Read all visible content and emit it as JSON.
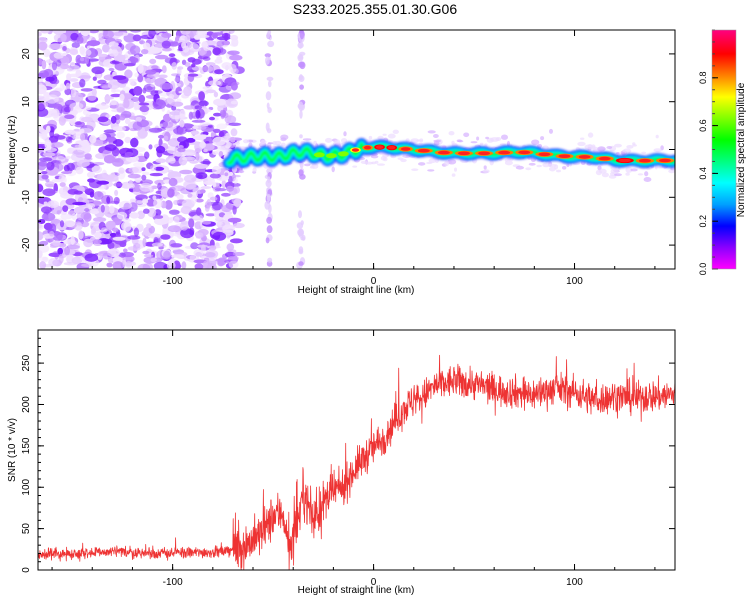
{
  "figure": {
    "title": "S233.2025.355.01.30.G06"
  },
  "chart_data": [
    {
      "type": "heatmap",
      "title": "",
      "xlabel": "Height of straight line (km)",
      "ylabel": "Frequency (Hz)",
      "xlim": [
        -167,
        150
      ],
      "ylim": [
        -25,
        25
      ],
      "xticks": [
        -100,
        0,
        100
      ],
      "yticks": [
        -20,
        -10,
        0,
        10,
        20
      ],
      "colorbar": {
        "label": "Normalized spectral amplitude",
        "ticks": [
          0.0,
          0.2,
          0.4,
          0.6,
          0.8
        ],
        "range": [
          0,
          1
        ],
        "colormap": [
          "#ff00ff",
          "#8a00ff",
          "#0000ff",
          "#00a0ff",
          "#00ffff",
          "#00ff80",
          "#00ff00",
          "#80ff00",
          "#ffff00",
          "#ff8000",
          "#ff0000",
          "#ff0080"
        ]
      },
      "noise_region_x": [
        -167,
        -70
      ],
      "ridge": {
        "x": [
          -72,
          -66,
          -60,
          -54,
          -48,
          -42,
          -36,
          -30,
          -24,
          -18,
          -12,
          -6,
          0,
          6,
          12,
          20,
          30,
          40,
          50,
          60,
          70,
          80,
          90,
          100,
          110,
          120,
          130,
          140,
          150
        ],
        "freq_hz": [
          -2.0,
          -1.8,
          -1.5,
          -1.4,
          -1.6,
          -1.0,
          -0.5,
          -0.8,
          -1.4,
          -1.2,
          -0.6,
          0.4,
          0.4,
          0.6,
          0.2,
          0.0,
          -0.5,
          -0.8,
          -0.8,
          -0.8,
          -0.5,
          -0.7,
          -1.3,
          -1.5,
          -1.6,
          -2.2,
          -2.4,
          -2.3,
          -2.3
        ],
        "amplitude": [
          0.4,
          0.42,
          0.45,
          0.45,
          0.5,
          0.55,
          0.55,
          0.6,
          0.62,
          0.65,
          0.72,
          0.85,
          0.9,
          0.9,
          0.85,
          0.8,
          0.8,
          0.85,
          0.8,
          0.78,
          0.85,
          0.82,
          0.8,
          0.85,
          0.8,
          0.9,
          0.85,
          0.85,
          0.85
        ]
      }
    },
    {
      "type": "line",
      "title": "",
      "xlabel": "Height of straight line (km)",
      "ylabel": "SNR (10 * v/v)",
      "xlim": [
        -167,
        150
      ],
      "ylim": [
        0,
        290
      ],
      "xticks": [
        -100,
        0,
        100
      ],
      "yticks": [
        0,
        50,
        100,
        150,
        200,
        250
      ],
      "color": "#ee3333",
      "series": [
        {
          "name": "SNR",
          "x": [
            -167,
            -150,
            -130,
            -110,
            -90,
            -75,
            -65,
            -55,
            -50,
            -45,
            -42,
            -38,
            -35,
            -30,
            -25,
            -20,
            -15,
            -10,
            -5,
            0,
            5,
            10,
            15,
            20,
            25,
            30,
            40,
            50,
            60,
            70,
            80,
            90,
            100,
            110,
            120,
            130,
            140,
            150
          ],
          "y": [
            18,
            20,
            22,
            20,
            21,
            22,
            28,
            45,
            65,
            70,
            20,
            55,
            95,
            60,
            80,
            95,
            100,
            120,
            135,
            148,
            160,
            178,
            195,
            205,
            210,
            222,
            228,
            225,
            218,
            215,
            212,
            220,
            215,
            205,
            210,
            208,
            210,
            212
          ]
        }
      ]
    }
  ]
}
